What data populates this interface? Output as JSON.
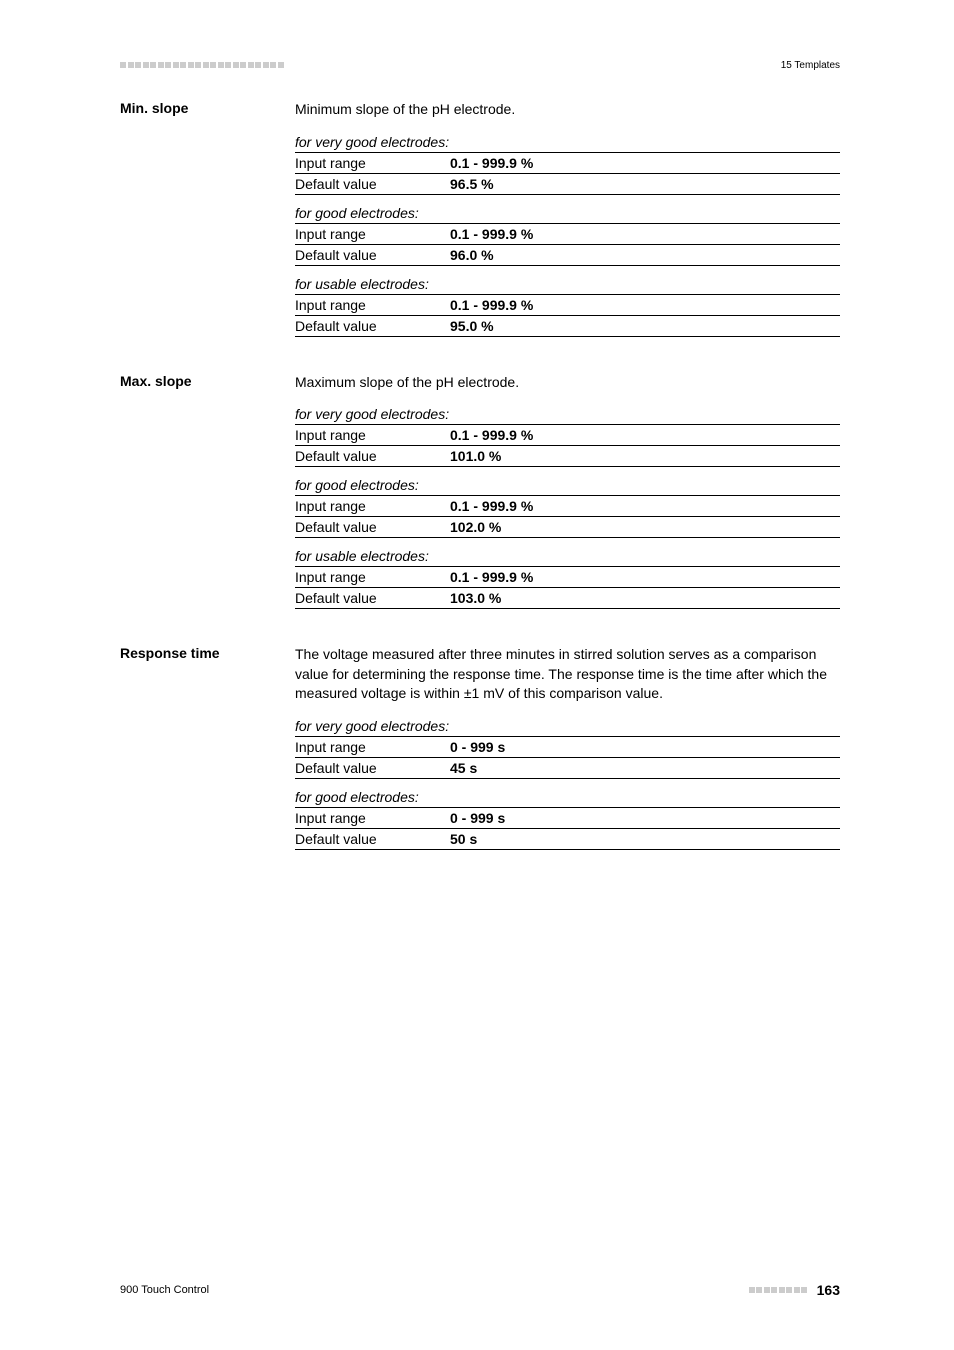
{
  "header": {
    "chapterLabel": "15 Templates"
  },
  "sections": [
    {
      "label": "Min. slope",
      "description": "Minimum slope of the pH electrode.",
      "groups": [
        {
          "heading": "for very good electrodes:",
          "rows": [
            {
              "key": "Input range",
              "val": "0.1 - 999.9 %"
            },
            {
              "key": "Default value",
              "val": "96.5 %"
            }
          ]
        },
        {
          "heading": "for good electrodes:",
          "rows": [
            {
              "key": "Input range",
              "val": "0.1 - 999.9 %"
            },
            {
              "key": "Default value",
              "val": "96.0 %"
            }
          ]
        },
        {
          "heading": "for usable electrodes:",
          "rows": [
            {
              "key": "Input range",
              "val": "0.1 - 999.9 %"
            },
            {
              "key": "Default value",
              "val": "95.0 %"
            }
          ]
        }
      ]
    },
    {
      "label": "Max. slope",
      "description": "Maximum slope of the pH electrode.",
      "groups": [
        {
          "heading": "for very good electrodes:",
          "rows": [
            {
              "key": "Input range",
              "val": "0.1 - 999.9 %"
            },
            {
              "key": "Default value",
              "val": "101.0 %"
            }
          ]
        },
        {
          "heading": "for good electrodes:",
          "rows": [
            {
              "key": "Input range",
              "val": "0.1 - 999.9 %"
            },
            {
              "key": "Default value",
              "val": "102.0 %"
            }
          ]
        },
        {
          "heading": "for usable electrodes:",
          "rows": [
            {
              "key": "Input range",
              "val": "0.1 - 999.9 %"
            },
            {
              "key": "Default value",
              "val": "103.0 %"
            }
          ]
        }
      ]
    },
    {
      "label": "Response time",
      "description": "The voltage measured after three minutes in stirred solution serves as a comparison value for determining the response time. The response time is the time after which the measured voltage is within ±1 mV of this comparison value.",
      "groups": [
        {
          "heading": "for very good electrodes:",
          "rows": [
            {
              "key": "Input range",
              "val": "0 - 999 s"
            },
            {
              "key": "Default value",
              "val": "45 s"
            }
          ]
        },
        {
          "heading": "for good electrodes:",
          "rows": [
            {
              "key": "Input range",
              "val": "0 - 999 s"
            },
            {
              "key": "Default value",
              "val": "50 s"
            }
          ]
        }
      ]
    }
  ],
  "footer": {
    "product": "900 Touch Control",
    "pageNumber": "163"
  },
  "style": {
    "squareColor": "#cccccc",
    "headerSquareCount": 22,
    "footerSquareCount": 8
  }
}
